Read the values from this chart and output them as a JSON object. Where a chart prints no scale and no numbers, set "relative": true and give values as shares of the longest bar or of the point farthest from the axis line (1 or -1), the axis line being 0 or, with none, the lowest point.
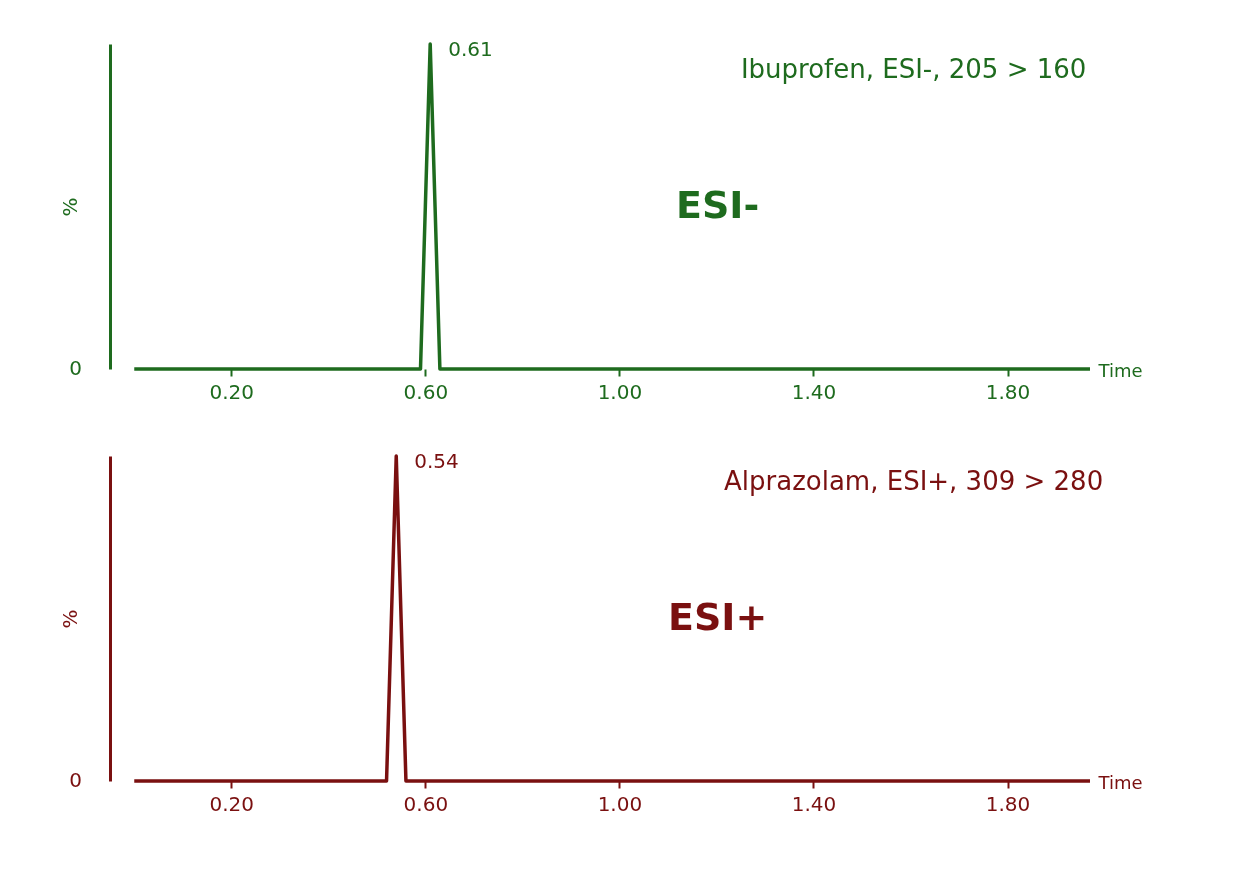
{
  "chart_data": [
    {
      "type": "line",
      "relative": true,
      "ylabel": "%",
      "xlabel": "Time",
      "xlim": [
        -0.05,
        1.97
      ],
      "xticks": [
        {
          "value": 0.2,
          "label": "0.20"
        },
        {
          "value": 0.6,
          "label": "0.60"
        },
        {
          "value": 1.0,
          "label": "1.00"
        },
        {
          "value": 1.4,
          "label": "1.40"
        },
        {
          "value": 1.8,
          "label": "1.80"
        }
      ],
      "grid": false,
      "marker": "none",
      "line_style": "solid",
      "x": [
        0.0,
        0.59,
        0.6,
        0.61,
        0.62,
        0.63,
        1.97
      ],
      "series": [
        {
          "color": "#1e6b1e",
          "values": [
            0,
            0,
            0.5,
            1,
            0.5,
            0,
            0
          ]
        }
      ],
      "annotations": [
        {
          "text": "0.61",
          "x": 0.61,
          "y": 1
        },
        "Ibuprofen, ESI-, 205 > 160",
        "ESI-",
        "0"
      ]
    },
    {
      "type": "line",
      "relative": true,
      "ylabel": "%",
      "xlabel": "Time",
      "xlim": [
        -0.05,
        1.97
      ],
      "xticks": [
        {
          "value": 0.2,
          "label": "0.20"
        },
        {
          "value": 0.6,
          "label": "0.60"
        },
        {
          "value": 1.0,
          "label": "1.00"
        },
        {
          "value": 1.4,
          "label": "1.40"
        },
        {
          "value": 1.8,
          "label": "1.80"
        }
      ],
      "grid": false,
      "marker": "none",
      "line_style": "solid",
      "x": [
        0.0,
        0.52,
        0.53,
        0.54,
        0.55,
        0.56,
        1.97
      ],
      "series": [
        {
          "color": "#7a1010",
          "values": [
            0,
            0,
            0.5,
            1,
            0.5,
            0,
            0
          ]
        }
      ],
      "annotations": [
        {
          "text": "0.54",
          "x": 0.54,
          "y": 1
        },
        "Alprazolam, ESI+, 309 > 280",
        "ESI+",
        "0"
      ]
    }
  ]
}
